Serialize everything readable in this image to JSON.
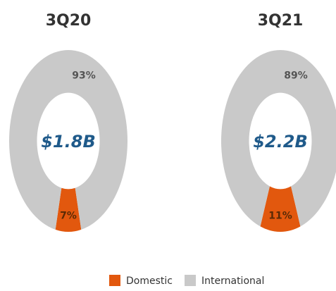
{
  "chart_data": [
    {
      "type": "pie",
      "title": "3Q20",
      "center_label": "$1.8B",
      "values": [
        7,
        93
      ],
      "value_labels": [
        "7%",
        "93%"
      ]
    },
    {
      "type": "pie",
      "title": "3Q21",
      "center_label": "$2.2B",
      "values": [
        11,
        89
      ],
      "value_labels": [
        "11%",
        "89%"
      ]
    }
  ],
  "legend": {
    "items": [
      {
        "name": "Domestic",
        "color": "#e2580e"
      },
      {
        "name": "International",
        "color": "#c9c9c9"
      }
    ]
  }
}
